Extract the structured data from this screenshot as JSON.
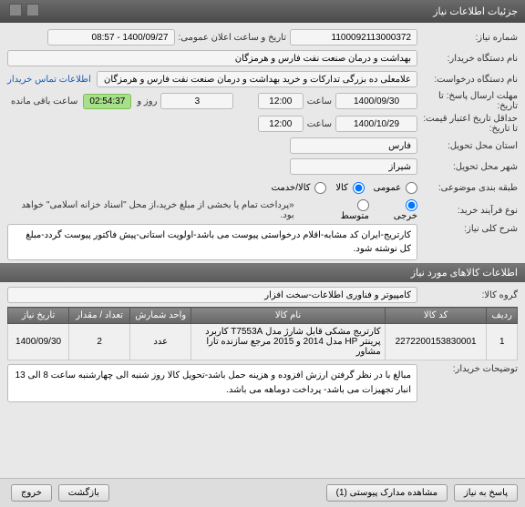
{
  "window": {
    "title": "جزئیات اطلاعات نیاز"
  },
  "colors": {
    "titlebar_grad_top": "#6b6b6b",
    "titlebar_grad_bottom": "#4a4a4a",
    "badge_bg": "#a8e08a",
    "badge_border": "#7abf5a",
    "link": "#1a5db4",
    "body_bg": "#e8e8e8",
    "box_bg": "#f5f5f5",
    "box_border": "#bbbbbb",
    "th_grad_top": "#888888",
    "th_grad_bottom": "#666666"
  },
  "labels": {
    "need_no": "شماره نیاز:",
    "announce_dt": "تاریخ و ساعت اعلان عمومی:",
    "buyer_unit": "نام دستگاه خریدار:",
    "requester": "نام دستگاه درخواست:",
    "contact_link": "اطلاعات تماس خریدار",
    "reply_deadline": "مهلت ارسال پاسخ: تا تاریخ:",
    "time": "ساعت",
    "day_and": "روز و",
    "remaining": "ساعت باقی مانده",
    "price_validity": "حداقل تاریخ اعتبار قیمت: تا تاریخ:",
    "delivery_prov": "استان محل تحویل:",
    "delivery_city": "شهر محل تحویل:",
    "subject_class": "طبقه بندی موضوعی:",
    "purchase_type": "نوع فرآیند خرید:",
    "payment_note": "«پرداخت تمام یا بخشی از مبلغ خرید،از محل \"اسناد خزانه اسلامی\" خواهد بود.",
    "need_summary": "شرح کلی نیاز:",
    "section_items": "اطلاعات کالاهای مورد نیاز",
    "item_group": "گروه کالا:",
    "buyer_notes": "توضیحات خریدار:"
  },
  "fields": {
    "need_no": "1100092113000372",
    "announce_dt": "1400/09/27 - 08:57",
    "buyer_unit": "بهداشت و درمان صنعت نفت فارس و هرمزگان",
    "requester": "علامعلی ده بزرگی تدارکات و خرید بهداشت و درمان صنعت نفت فارس و هرمزگان",
    "reply_date": "1400/09/30",
    "reply_time": "12:00",
    "remaining_days": "3",
    "remaining_time": "02:54:37",
    "price_validity_date": "1400/10/29",
    "price_validity_time": "12:00",
    "delivery_prov": "فارس",
    "delivery_city": "شیراز",
    "need_summary": "کارتریج-ایران کد مشابه-اقلام درخواستی پیوست می باشد-اولویت استانی-پیش فاکتور پیوست گردد-مبلغ کل نوشته شود.",
    "item_group": "کامپیوتر و فناوری اطلاعات-سخت افزار",
    "buyer_notes": "مبالغ با در نظر گرفتن ارزش افزوده و هزینه حمل باشد-تحویل کالا روز شنبه الی چهارشنبه ساعت 8 الی 13 انبار تجهیزات می باشد- پرداخت دوماهه می باشد."
  },
  "subject_class": {
    "options": [
      "عمومی",
      "کالا",
      "کالا/خدمت"
    ],
    "selected_index": 1
  },
  "purchase_type": {
    "options": [
      "خرجی",
      "متوسط"
    ],
    "selected_index": 0
  },
  "table": {
    "columns": [
      "ردیف",
      "کد کالا",
      "نام کالا",
      "واحد شمارش",
      "تعداد / مقدار",
      "تاریخ نیاز"
    ],
    "col_widths": [
      "6%",
      "20%",
      "38%",
      "12%",
      "12%",
      "12%"
    ],
    "rows": [
      {
        "idx": "1",
        "code": "2272200153830001",
        "name": "کارتریج مشکی قابل شارژ مدل T7553A کاربرد پرینتر HP مدل 2014 و 2015 مرجع سازنده تارا مشاور",
        "unit": "عدد",
        "qty": "2",
        "need_date": "1400/09/30"
      }
    ]
  },
  "buttons": {
    "reply": "پاسخ به نیاز",
    "attachments": "مشاهده مدارک پیوستی (1)",
    "back": "بازگشت",
    "exit": "خروج"
  }
}
